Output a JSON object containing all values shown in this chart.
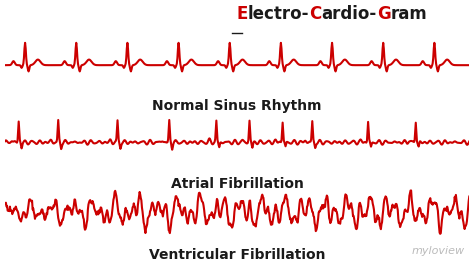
{
  "title_parts": [
    [
      "E",
      "#cc0000"
    ],
    [
      "lectro-",
      "#1a1a1a"
    ],
    [
      "C",
      "#cc0000"
    ],
    [
      "ardio-",
      "#1a1a1a"
    ],
    [
      "G",
      "#cc0000"
    ],
    [
      "ram",
      "#1a1a1a"
    ]
  ],
  "title_underline_color": "#1a1a1a",
  "ecg_color": "#cc0000",
  "background_color": "#ffffff",
  "labels": [
    "Normal Sinus Rhythm",
    "Atrial Fibrillation",
    "Ventricular Fibrillation"
  ],
  "label_color": "#1a1a1a",
  "label_fontsize": 10,
  "title_fontsize": 12,
  "watermark": "myloview",
  "watermark_color": "#bbbbbb",
  "line_width": 1.5,
  "figsize": [
    4.74,
    2.66
  ],
  "dpi": 100
}
